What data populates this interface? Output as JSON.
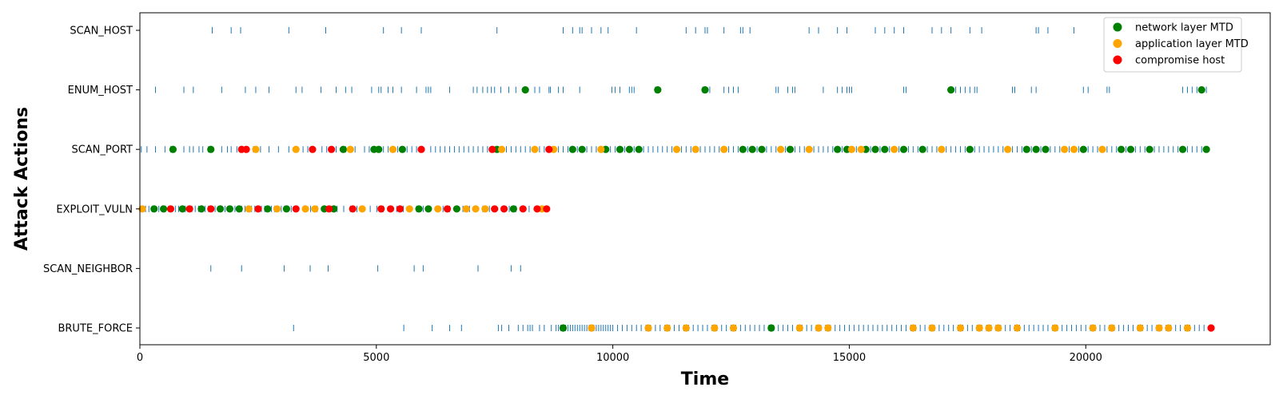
{
  "chart_data": {
    "type": "scatter",
    "title": "",
    "xlabel": "Time",
    "ylabel": "Attack Actions",
    "xlim": [
      0,
      23900
    ],
    "x_ticks": [
      0,
      5000,
      10000,
      15000,
      20000
    ],
    "categories": [
      "BRUTE_FORCE",
      "SCAN_NEIGHBOR",
      "EXPLOIT_VULN",
      "SCAN_PORT",
      "ENUM_HOST",
      "SCAN_HOST"
    ],
    "grid": false,
    "legend_position": "top-right",
    "action_ticks": {
      "name": "actions",
      "color": "#1f77b4",
      "points": {
        "SCAN_HOST": [
          1530,
          1930,
          2130,
          3150,
          3930,
          5150,
          5530,
          5950,
          7550,
          8950,
          9150,
          9300,
          9350,
          9550,
          9750,
          9900,
          10500,
          11550,
          11750,
          11950,
          12000,
          12350,
          12700,
          12750,
          12900,
          14150,
          14350,
          14750,
          14950,
          15550,
          15750,
          15950,
          16150,
          16750,
          16950,
          17150,
          17550,
          17800,
          18950,
          19000,
          19200,
          19750
        ],
        "ENUM_HOST": [
          330,
          930,
          1130,
          1730,
          2230,
          2450,
          2730,
          3300,
          3430,
          3830,
          4150,
          4350,
          4480,
          4900,
          5050,
          5100,
          5250,
          5350,
          5530,
          5850,
          6050,
          6100,
          6150,
          6550,
          7050,
          7130,
          7250,
          7350,
          7430,
          7500,
          7630,
          7800,
          7950,
          8150,
          8350,
          8450,
          8650,
          8680,
          8850,
          8950,
          9300,
          9980,
          10050,
          10150,
          10350,
          10400,
          10450,
          10900,
          11900,
          11950,
          12050,
          12350,
          12450,
          12550,
          12650,
          13450,
          13500,
          13700,
          13800,
          13850,
          14450,
          14750,
          14850,
          14950,
          15000,
          15050,
          16150,
          16200,
          17250,
          17350,
          17450,
          17550,
          17650,
          17700,
          18450,
          18500,
          18850,
          18950,
          19950,
          20050,
          20450,
          20500,
          22050,
          22150,
          22250,
          22350,
          22450,
          22550
        ],
        "SCAN_PORT": [
          30,
          150,
          330,
          530,
          650,
          730,
          930,
          1050,
          1130,
          1250,
          1330,
          1450,
          1730,
          1850,
          1930,
          2050,
          2250,
          2400,
          2550,
          2730,
          2930,
          3150,
          3330,
          3450,
          3550,
          3650,
          3850,
          3950,
          4150,
          4350,
          4550,
          4750,
          4850,
          5050,
          5150,
          5250,
          5350,
          5450,
          5550,
          5650,
          5750,
          5850,
          5950,
          6150,
          6250,
          6350,
          6450,
          6550,
          6650,
          6750,
          6850,
          6950,
          7050,
          7150,
          7250,
          7350,
          7450,
          7550,
          7650,
          7750,
          7850,
          7950,
          8050,
          8150,
          8250,
          8350,
          8450,
          8550,
          8650,
          8750,
          8850,
          8950,
          9050,
          9150,
          9250,
          9350,
          9450,
          9550,
          9650,
          9750,
          9850,
          9950,
          10050,
          10150,
          10250,
          10350,
          10450,
          10550,
          10650,
          10750,
          10850,
          10950,
          11050,
          11150,
          11250,
          11350,
          11450,
          11550,
          11650,
          11750,
          11850,
          11950,
          12050,
          12150,
          12250,
          12350,
          12450,
          12550,
          12650,
          12750,
          12850,
          12950,
          13050,
          13150,
          13250,
          13350,
          13450,
          13550,
          13650,
          13750,
          13850,
          13950,
          14050,
          14150,
          14250,
          14350,
          14450,
          14550,
          14650,
          14750,
          14850,
          14950,
          15050,
          15150,
          15250,
          15350,
          15450,
          15550,
          15650,
          15750,
          15850,
          15950,
          16050,
          16150,
          16250,
          16350,
          16450,
          16550,
          16650,
          16750,
          16850,
          16950,
          17050,
          17150,
          17250,
          17350,
          17450,
          17550,
          17650,
          17750,
          17850,
          17950,
          18050,
          18150,
          18250,
          18350,
          18450,
          18550,
          18650,
          18750,
          18850,
          18950,
          19050,
          19150,
          19250,
          19350,
          19450,
          19550,
          19650,
          19750,
          19850,
          19950,
          20050,
          20150,
          20250,
          20350,
          20450,
          20550,
          20650,
          20750,
          20850,
          20950,
          21050,
          21150,
          21250,
          21350,
          21450,
          21550,
          21650,
          21750,
          21850,
          21950,
          22050,
          22150,
          22250,
          22350,
          22450,
          22550
        ],
        "EXPLOIT_VULN": [
          50,
          120,
          190,
          260,
          330,
          400,
          470,
          540,
          610,
          680,
          750,
          820,
          890,
          960,
          1030,
          1100,
          1170,
          1240,
          1310,
          1380,
          1450,
          1520,
          1590,
          1660,
          1730,
          1800,
          1870,
          1940,
          2010,
          2080,
          2150,
          2220,
          2290,
          2360,
          2430,
          2500,
          2570,
          2640,
          2710,
          2780,
          2850,
          2920,
          2990,
          3060,
          3130,
          3200,
          3330,
          3470,
          3610,
          3750,
          3890,
          4030,
          4170,
          4310,
          4450,
          4590,
          4730,
          4870,
          5010,
          5150,
          5290,
          5430,
          5570,
          5710,
          5850,
          5990,
          6130,
          6270,
          6410,
          6550,
          6690,
          6830,
          6970,
          7110,
          7250,
          7390,
          7530,
          7670,
          7810,
          7950,
          8090,
          8230,
          8370,
          8510,
          8600
        ],
        "SCAN_NEIGHBOR": [
          1500,
          2150,
          3050,
          3600,
          3980,
          5030,
          5800,
          5990,
          7150,
          7850,
          8050
        ],
        "BRUTE_FORCE": [
          3250,
          5580,
          6180,
          6550,
          6800,
          7580,
          7650,
          7800,
          8000,
          8100,
          8200,
          8250,
          8300,
          8450,
          8550,
          8700,
          8800,
          8850,
          8900,
          8950,
          9000,
          9050,
          9100,
          9150,
          9200,
          9250,
          9300,
          9350,
          9400,
          9450,
          9500,
          9550,
          9600,
          9650,
          9700,
          9750,
          9800,
          9850,
          9900,
          9950,
          10000,
          10100,
          10200,
          10300,
          10400,
          10500,
          10600,
          10700,
          10800,
          10900,
          11000,
          11100,
          11200,
          11300,
          11400,
          11500,
          11600,
          11700,
          11800,
          11900,
          12000,
          12100,
          12200,
          12300,
          12400,
          12500,
          12600,
          12700,
          12800,
          12900,
          13000,
          13100,
          13200,
          13300,
          13400,
          13500,
          13600,
          13700,
          13800,
          13900,
          14000,
          14100,
          14200,
          14300,
          14400,
          14500,
          14600,
          14700,
          14800,
          14900,
          15000,
          15100,
          15200,
          15300,
          15400,
          15500,
          15600,
          15700,
          15800,
          15900,
          16000,
          16100,
          16200,
          16300,
          16400,
          16500,
          16600,
          16700,
          16800,
          16900,
          17000,
          17100,
          17200,
          17300,
          17400,
          17500,
          17600,
          17700,
          17800,
          17900,
          18000,
          18100,
          18200,
          18300,
          18400,
          18500,
          18600,
          18700,
          18800,
          18900,
          19000,
          19100,
          19200,
          19300,
          19400,
          19500,
          19600,
          19700,
          19800,
          19900,
          20000,
          20100,
          20200,
          20300,
          20400,
          20500,
          20600,
          20700,
          20800,
          20900,
          21000,
          21100,
          21200,
          21300,
          21400,
          21500,
          21600,
          21700,
          21800,
          21900,
          22000,
          22100,
          22200,
          22300,
          22400,
          22500
        ]
      }
    },
    "series": [
      {
        "name": "network layer MTD",
        "color": "#008000",
        "points": {
          "SCAN_PORT": [
            700,
            1500,
            4300,
            4950,
            5050,
            5550,
            7550,
            9150,
            9350,
            9850,
            10150,
            10350,
            10550,
            12750,
            12950,
            13150,
            13750,
            14750,
            14950,
            15350,
            15550,
            15750,
            16150,
            16550,
            17550,
            18750,
            18950,
            19150,
            19950,
            20750,
            20950,
            21350,
            22050,
            22550
          ],
          "ENUM_HOST": [
            8150,
            10950,
            11950,
            17150,
            22450
          ],
          "EXPLOIT_VULN": [
            300,
            500,
            900,
            1300,
            1700,
            1900,
            2100,
            2700,
            3100,
            3900,
            4100,
            5900,
            6100,
            6700,
            7900
          ],
          "BRUTE_FORCE": [
            8950,
            13350
          ]
        }
      },
      {
        "name": "application layer MTD",
        "color": "#ffa500",
        "points": {
          "SCAN_PORT": [
            2450,
            3300,
            4450,
            5350,
            7650,
            8350,
            8750,
            9750,
            11350,
            11750,
            12350,
            13550,
            14150,
            15050,
            15250,
            15950,
            16950,
            18350,
            19550,
            19750,
            20350
          ],
          "EXPLOIT_VULN": [
            50,
            2300,
            2900,
            3500,
            3700,
            4700,
            5700,
            6300,
            6900,
            7100,
            7300,
            8500
          ],
          "BRUTE_FORCE": [
            9550,
            10750,
            11150,
            11550,
            12150,
            12550,
            13950,
            14350,
            14550,
            16350,
            16750,
            17350,
            17750,
            17950,
            18150,
            18550,
            19350,
            20150,
            20550,
            21150,
            21550,
            21750,
            22150
          ]
        }
      },
      {
        "name": "compromise host",
        "color": "#ff0000",
        "points": {
          "SCAN_PORT": [
            2150,
            2250,
            3650,
            4050,
            5950,
            7450,
            8650
          ],
          "EXPLOIT_VULN": [
            650,
            1050,
            1500,
            2500,
            3300,
            4000,
            4500,
            5100,
            5300,
            5500,
            6500,
            7500,
            7700,
            8100,
            8400,
            8600
          ],
          "BRUTE_FORCE": [
            22650
          ]
        }
      }
    ]
  }
}
